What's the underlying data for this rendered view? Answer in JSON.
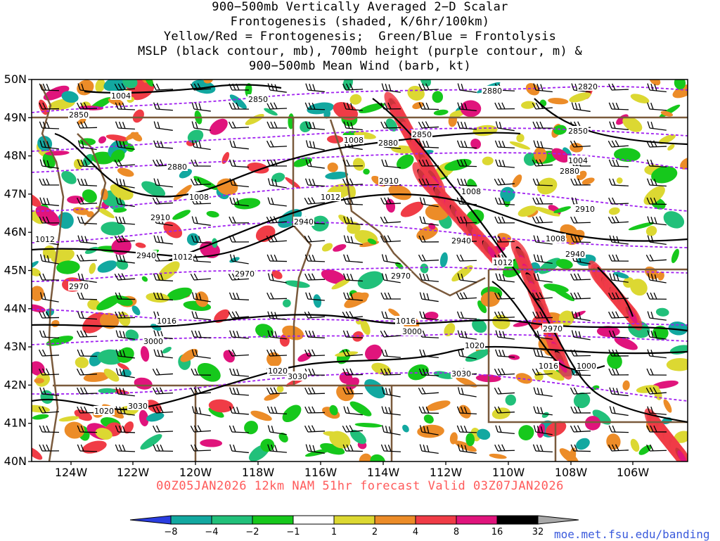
{
  "title_lines": [
    "900−500mb Vertically Averaged 2−D Scalar",
    "Frontogenesis (shaded, K/6hr/100km)",
    "Yellow/Red = Frontogenesis;  Green/Blue = Frontolysis",
    "MSLP (black contour, mb), 700mb height (purple contour, m) &",
    "900−500mb Mean Wind (barb, kt)"
  ],
  "lat_labels": [
    "50N",
    "49N",
    "48N",
    "47N",
    "46N",
    "45N",
    "44N",
    "43N",
    "42N",
    "41N",
    "40N"
  ],
  "lon_labels": [
    "124W",
    "122W",
    "120W",
    "118W",
    "116W",
    "114W",
    "112W",
    "110W",
    "108W",
    "106W"
  ],
  "valid_line": "00Z05JAN2026 12km NAM 51hr forecast Valid 03Z07JAN2026",
  "credit": "moe.met.fsu.edu/banding",
  "colorbar": {
    "labels": [
      "−8",
      "−4",
      "−2",
      "−1",
      "1",
      "2",
      "4",
      "8",
      "16",
      "32"
    ],
    "colors": [
      "#2a3de0",
      "#12a8a0",
      "#21c07a",
      "#16c81c",
      "#ffffff",
      "#dcd832",
      "#ec8c28",
      "#f03c46",
      "#e0147c",
      "#000000",
      "#a8a8a8"
    ]
  },
  "mslp_labels": [
    "1004",
    "1008",
    "1008",
    "1008",
    "1012",
    "1012",
    "1012",
    "1016",
    "1016",
    "1016",
    "1020",
    "1020",
    "1020",
    "1004",
    "1008",
    "1012",
    "1000"
  ],
  "height_labels": [
    "2850",
    "2850",
    "2850",
    "2850",
    "2880",
    "2880",
    "2880",
    "2880",
    "2910",
    "2910",
    "2910",
    "2940",
    "2940",
    "2940",
    "2940",
    "2970",
    "2970",
    "2970",
    "2970",
    "3000",
    "3000",
    "3030",
    "3030",
    "3030",
    "2820"
  ],
  "colors": {
    "mslp": "#000000",
    "height": "#a020f0",
    "borders": "#7a5a3c",
    "valid_text": "#ff5a5a",
    "credit": "#3a5adc"
  }
}
